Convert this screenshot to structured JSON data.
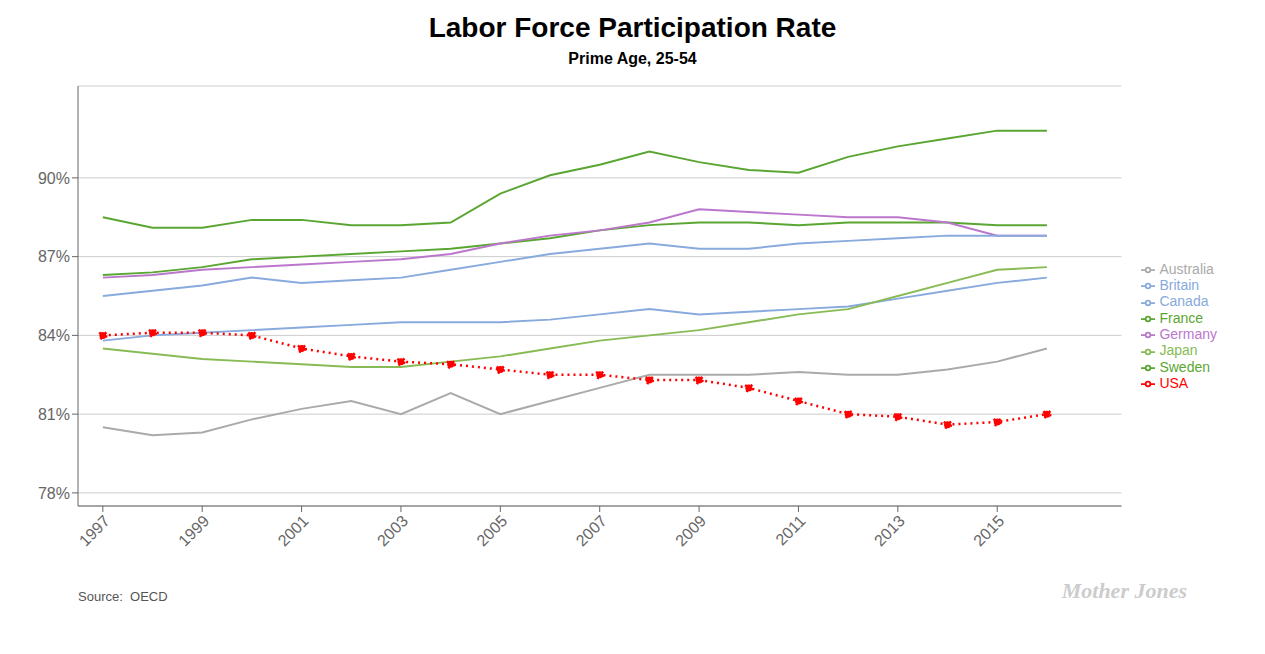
{
  "chart_data": {
    "type": "line",
    "title": "Labor Force Participation Rate",
    "subtitle": "Prime Age, 25-54",
    "annotations": [
      "Source:  OECD",
      "Mother Jones"
    ],
    "x": [
      1997,
      1998,
      1999,
      2000,
      2001,
      2002,
      2003,
      2004,
      2005,
      2006,
      2007,
      2008,
      2009,
      2010,
      2011,
      2012,
      2013,
      2014,
      2015,
      2016
    ],
    "series": [
      {
        "name": "Sweden",
        "color": "#5aa632",
        "line_style": "solid",
        "values": [
          88.5,
          88.1,
          88.1,
          88.4,
          88.4,
          88.2,
          88.2,
          88.3,
          89.4,
          90.1,
          90.5,
          91.0,
          90.6,
          90.3,
          90.2,
          90.8,
          91.2,
          91.5,
          91.8,
          91.8
        ]
      },
      {
        "name": "France",
        "color": "#5aa632",
        "line_style": "solid",
        "values": [
          86.3,
          86.4,
          86.6,
          86.9,
          87.0,
          87.1,
          87.2,
          87.3,
          87.5,
          87.7,
          88.0,
          88.2,
          88.3,
          88.3,
          88.2,
          88.3,
          88.3,
          88.3,
          88.2,
          88.2
        ]
      },
      {
        "name": "Germany",
        "color": "#bb77cc",
        "line_style": "solid",
        "values": [
          86.2,
          86.3,
          86.5,
          86.6,
          86.7,
          86.8,
          86.9,
          87.1,
          87.5,
          87.8,
          88.0,
          88.3,
          88.8,
          88.7,
          88.6,
          88.5,
          88.5,
          88.3,
          87.8,
          87.8
        ]
      },
      {
        "name": "Canada",
        "color": "#88aadd",
        "line_style": "solid",
        "values": [
          85.5,
          85.7,
          85.9,
          86.2,
          86.0,
          86.1,
          86.2,
          86.5,
          86.8,
          87.1,
          87.3,
          87.5,
          87.3,
          87.3,
          87.5,
          87.6,
          87.7,
          87.8,
          87.8,
          87.8
        ]
      },
      {
        "name": "Britain",
        "color": "#88aadd",
        "line_style": "solid",
        "values": [
          83.8,
          84.0,
          84.1,
          84.2,
          84.3,
          84.4,
          84.5,
          84.5,
          84.5,
          84.6,
          84.8,
          85.0,
          84.8,
          84.9,
          85.0,
          85.1,
          85.4,
          85.7,
          86.0,
          86.2
        ]
      },
      {
        "name": "Japan",
        "color": "#88bb55",
        "line_style": "solid",
        "values": [
          83.5,
          83.3,
          83.1,
          83.0,
          82.9,
          82.8,
          82.8,
          83.0,
          83.2,
          83.5,
          83.8,
          84.0,
          84.2,
          84.5,
          84.8,
          85.0,
          85.5,
          86.0,
          86.5,
          86.6
        ]
      },
      {
        "name": "Australia",
        "color": "#aaaaaa",
        "line_style": "solid",
        "values": [
          80.5,
          80.2,
          80.3,
          80.8,
          81.2,
          81.5,
          81.0,
          81.8,
          81.0,
          81.5,
          82.0,
          82.5,
          82.5,
          82.5,
          82.6,
          82.5,
          82.5,
          82.7,
          83.0,
          83.5
        ]
      },
      {
        "name": "USA",
        "color": "#ff0000",
        "line_style": "dotted",
        "marker": "circle",
        "values": [
          84.0,
          84.1,
          84.1,
          84.0,
          83.5,
          83.2,
          83.0,
          82.9,
          82.7,
          82.5,
          82.5,
          82.3,
          82.3,
          82.0,
          81.5,
          81.0,
          80.9,
          80.6,
          80.7,
          81.0
        ]
      }
    ],
    "xlim": [
      1996.5,
      2017.5
    ],
    "xticks": [
      1997,
      1999,
      2001,
      2003,
      2005,
      2007,
      2009,
      2011,
      2013,
      2015
    ],
    "ylim": [
      77.5,
      93.5
    ],
    "yticks": [
      {
        "value": 78,
        "label": "78%"
      },
      {
        "value": 81,
        "label": "81%"
      },
      {
        "value": 84,
        "label": "84%"
      },
      {
        "value": 87,
        "label": "87%"
      },
      {
        "value": 90,
        "label": "90%"
      }
    ],
    "grid": "y",
    "legend": "right"
  }
}
